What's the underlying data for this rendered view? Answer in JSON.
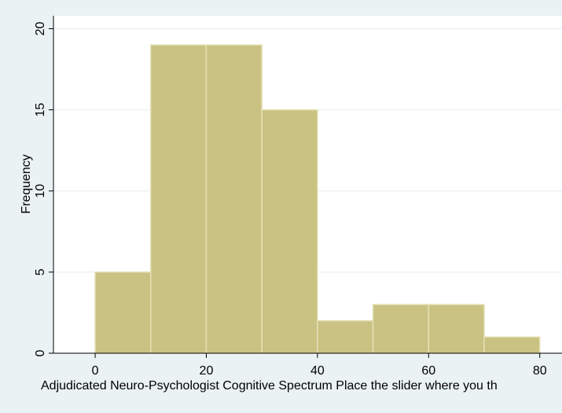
{
  "colors": {
    "background": "#eaf2f3",
    "plot_background": "#ffffff",
    "bar_fill": "#cac283",
    "bar_stroke": "#e4e0b5",
    "grid": "#e5eeef",
    "axis": "#000000"
  },
  "chart_data": {
    "type": "bar",
    "title": "",
    "xlabel": "Adjudicated Neuro-Psychologist Cognitive Spectrum  Place the slider where you th",
    "ylabel": "Frequency",
    "bins": [
      {
        "start": 0,
        "end": 10,
        "value": 5
      },
      {
        "start": 10,
        "end": 20,
        "value": 19
      },
      {
        "start": 20,
        "end": 30,
        "value": 19
      },
      {
        "start": 30,
        "end": 40,
        "value": 15
      },
      {
        "start": 40,
        "end": 50,
        "value": 2
      },
      {
        "start": 50,
        "end": 60,
        "value": 3
      },
      {
        "start": 60,
        "end": 70,
        "value": 3
      },
      {
        "start": 70,
        "end": 80,
        "value": 1
      }
    ],
    "xticks": [
      0,
      20,
      40,
      60,
      80
    ],
    "yticks": [
      0,
      5,
      10,
      15,
      20
    ],
    "xlim": [
      -7.5,
      84
    ],
    "ylim": [
      0,
      20.8
    ],
    "grid": true,
    "legend": "none"
  }
}
